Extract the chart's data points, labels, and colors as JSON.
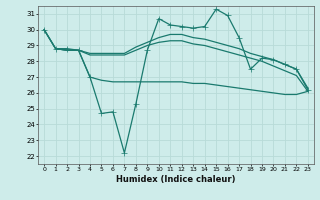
{
  "xlabel": "Humidex (Indice chaleur)",
  "xlim": [
    -0.5,
    23.5
  ],
  "ylim": [
    21.5,
    31.5
  ],
  "yticks": [
    22,
    23,
    24,
    25,
    26,
    27,
    28,
    29,
    30,
    31
  ],
  "xticks": [
    0,
    1,
    2,
    3,
    4,
    5,
    6,
    7,
    8,
    9,
    10,
    11,
    12,
    13,
    14,
    15,
    16,
    17,
    18,
    19,
    20,
    21,
    22,
    23
  ],
  "bg_color": "#ceecea",
  "grid_color": "#b8dbd8",
  "line_color": "#1a7a6e",
  "lines": [
    {
      "x": [
        0,
        1,
        2,
        3,
        4,
        5,
        6,
        7,
        8,
        9,
        10,
        11,
        12,
        13,
        14,
        15,
        16,
        17,
        18,
        19,
        20,
        21,
        22,
        23
      ],
      "y": [
        30.0,
        28.8,
        28.7,
        28.7,
        28.5,
        28.5,
        28.5,
        28.5,
        28.9,
        29.2,
        29.5,
        29.7,
        29.7,
        29.5,
        29.4,
        29.2,
        29.0,
        28.8,
        28.5,
        28.3,
        28.1,
        27.8,
        27.5,
        26.3
      ],
      "marker": null,
      "lw": 0.9
    },
    {
      "x": [
        0,
        1,
        2,
        3,
        4,
        5,
        6,
        7,
        8,
        9,
        10,
        11,
        12,
        13,
        14,
        15,
        16,
        17,
        18,
        19,
        20,
        21,
        22,
        23
      ],
      "y": [
        30.0,
        28.8,
        28.7,
        28.7,
        28.4,
        28.4,
        28.4,
        28.4,
        28.7,
        29.0,
        29.2,
        29.3,
        29.3,
        29.1,
        29.0,
        28.8,
        28.6,
        28.4,
        28.2,
        28.0,
        27.7,
        27.4,
        27.1,
        26.1
      ],
      "marker": null,
      "lw": 0.9
    },
    {
      "x": [
        0,
        1,
        2,
        3,
        4,
        5,
        6,
        7,
        8,
        9,
        10,
        11,
        12,
        13,
        14,
        15,
        16,
        17,
        18,
        19,
        20,
        21,
        22,
        23
      ],
      "y": [
        30.0,
        28.8,
        28.8,
        28.7,
        27.0,
        24.7,
        24.8,
        22.2,
        25.3,
        28.7,
        30.7,
        30.3,
        30.2,
        30.1,
        30.2,
        31.3,
        30.9,
        29.5,
        27.5,
        28.2,
        28.1,
        27.8,
        27.5,
        26.2
      ],
      "marker": "+",
      "markersize": 4,
      "lw": 0.9
    },
    {
      "x": [
        1,
        2,
        3,
        4,
        5,
        6,
        7,
        8,
        9,
        10,
        11,
        12,
        13,
        14,
        15,
        16,
        17,
        18,
        19,
        20,
        21,
        22,
        23
      ],
      "y": [
        28.8,
        28.7,
        28.7,
        27.0,
        26.8,
        26.7,
        26.7,
        26.7,
        26.7,
        26.7,
        26.7,
        26.7,
        26.6,
        26.6,
        26.5,
        26.4,
        26.3,
        26.2,
        26.1,
        26.0,
        25.9,
        25.9,
        26.1
      ],
      "marker": null,
      "lw": 0.9
    }
  ]
}
